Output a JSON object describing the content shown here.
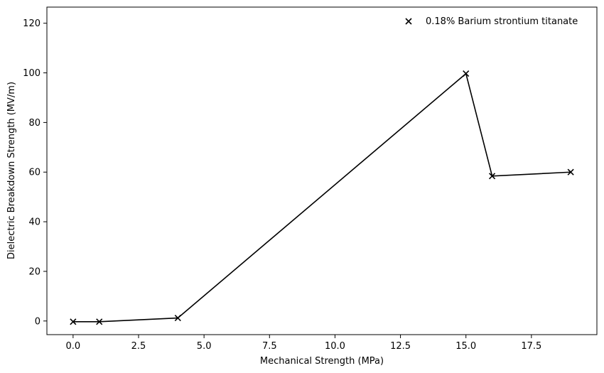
{
  "chart_data": {
    "type": "line",
    "title": "",
    "xlabel": "Mechanical Strength (MPa)",
    "ylabel": "Dielectric Breakdown Strength (MV/m)",
    "xlim": [
      -1.0,
      20.0
    ],
    "ylim": [
      -5.5,
      126.5
    ],
    "xticks": [
      0.0,
      2.5,
      5.0,
      7.5,
      10.0,
      12.5,
      15.0,
      17.5
    ],
    "xtick_labels": [
      "0.0",
      "2.5",
      "5.0",
      "7.5",
      "10.0",
      "12.5",
      "15.0",
      "17.5"
    ],
    "yticks": [
      0,
      20,
      40,
      60,
      80,
      100,
      120
    ],
    "ytick_labels": [
      "0",
      "20",
      "40",
      "60",
      "80",
      "100",
      "120"
    ],
    "grid": false,
    "legend_position": "top-right",
    "series": [
      {
        "name": "0.18% Barium strontium titanate",
        "marker": "x",
        "color": "#000000",
        "x": [
          0,
          1,
          4,
          15,
          16,
          19
        ],
        "y": [
          -0.3,
          -0.3,
          1.2,
          99.7,
          58.4,
          60.0
        ]
      }
    ]
  }
}
